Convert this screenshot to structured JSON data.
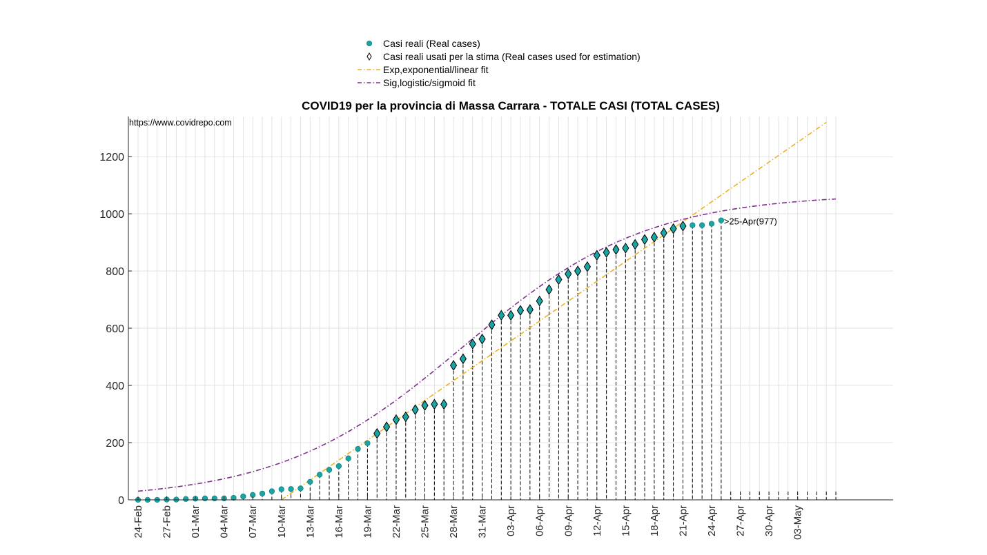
{
  "chart_data": {
    "type": "scatter",
    "title": "COVID19 per la provincia di Massa Carrara - TOTALE CASI (TOTAL CASES)",
    "source": "https://www.covidrepo.com",
    "xlabel": "",
    "ylabel": "",
    "ylim": [
      0,
      1340
    ],
    "yticks": [
      0,
      200,
      400,
      600,
      800,
      1000,
      1200
    ],
    "xlim": [
      "2020-02-24",
      "2020-05-07"
    ],
    "xticks": [
      "24-Feb",
      "27-Feb",
      "01-Mar",
      "04-Mar",
      "07-Mar",
      "10-Mar",
      "13-Mar",
      "16-Mar",
      "19-Mar",
      "22-Mar",
      "25-Mar",
      "28-Mar",
      "31-Mar",
      "03-Apr",
      "06-Apr",
      "09-Apr",
      "12-Apr",
      "15-Apr",
      "18-Apr",
      "21-Apr",
      "24-Apr",
      "27-Apr",
      "30-Apr",
      "03-May"
    ],
    "grid": true,
    "legend_position": "top-center",
    "annotation": ">25-Apr(977)",
    "dates": [
      "2020-02-24",
      "2020-02-25",
      "2020-02-26",
      "2020-02-27",
      "2020-02-28",
      "2020-02-29",
      "2020-03-01",
      "2020-03-02",
      "2020-03-03",
      "2020-03-04",
      "2020-03-05",
      "2020-03-06",
      "2020-03-07",
      "2020-03-08",
      "2020-03-09",
      "2020-03-10",
      "2020-03-11",
      "2020-03-12",
      "2020-03-13",
      "2020-03-14",
      "2020-03-15",
      "2020-03-16",
      "2020-03-17",
      "2020-03-18",
      "2020-03-19",
      "2020-03-20",
      "2020-03-21",
      "2020-03-22",
      "2020-03-23",
      "2020-03-24",
      "2020-03-25",
      "2020-03-26",
      "2020-03-27",
      "2020-03-28",
      "2020-03-29",
      "2020-03-30",
      "2020-03-31",
      "2020-04-01",
      "2020-04-02",
      "2020-04-03",
      "2020-04-04",
      "2020-04-05",
      "2020-04-06",
      "2020-04-07",
      "2020-04-08",
      "2020-04-09",
      "2020-04-10",
      "2020-04-11",
      "2020-04-12",
      "2020-04-13",
      "2020-04-14",
      "2020-04-15",
      "2020-04-16",
      "2020-04-17",
      "2020-04-18",
      "2020-04-19",
      "2020-04-20",
      "2020-04-21",
      "2020-04-22",
      "2020-04-23",
      "2020-04-24",
      "2020-04-25"
    ],
    "series": [
      {
        "name": "Casi reali (Real cases)",
        "marker": "circle",
        "color": "#1aa5a5",
        "values": [
          0,
          0,
          0,
          1,
          1,
          3,
          4,
          5,
          5,
          5,
          7,
          12,
          17,
          22,
          30,
          37,
          38,
          40,
          63,
          88,
          105,
          118,
          145,
          178,
          198,
          232,
          255,
          280,
          290,
          315,
          330,
          334,
          334,
          470,
          493,
          545,
          562,
          612,
          645,
          645,
          662,
          665,
          695,
          735,
          770,
          790,
          800,
          815,
          855,
          865,
          875,
          880,
          893,
          910,
          918,
          933,
          948,
          957,
          960,
          960,
          965,
          977
        ]
      },
      {
        "name": "Casi reali usati per la stima (Real cases used for estimation)",
        "marker": "diamond",
        "color": "#000000",
        "values": [
          null,
          null,
          null,
          null,
          null,
          null,
          null,
          null,
          null,
          null,
          null,
          null,
          null,
          null,
          null,
          null,
          null,
          null,
          null,
          null,
          null,
          null,
          null,
          null,
          null,
          232,
          255,
          280,
          290,
          315,
          330,
          334,
          334,
          470,
          493,
          545,
          562,
          612,
          645,
          645,
          662,
          665,
          695,
          735,
          770,
          790,
          800,
          815,
          855,
          865,
          875,
          880,
          893,
          910,
          918,
          933,
          948,
          957,
          null,
          null,
          null,
          null
        ]
      },
      {
        "name": "Exp,exponential/linear fit",
        "style": "dash-dot",
        "color": "#edb120",
        "formula": {
          "kind": "linear",
          "slope_per_day": 23.15,
          "zero_date": "2020-03-10"
        },
        "range": [
          "2020-03-09",
          "2020-05-06"
        ]
      },
      {
        "name": "Sig,logistic/sigmoid fit",
        "style": "dash-dot",
        "color": "#7e2f8e",
        "formula": {
          "kind": "logistic",
          "K": 1070,
          "rate_per_day": 0.104,
          "midpoint_date": "2020-03-29"
        },
        "range": [
          "2020-02-24",
          "2020-05-07"
        ]
      }
    ]
  },
  "colors": {
    "axis": "#262626",
    "grid": "#dcdcdc",
    "data_fill": "#1aa5a5",
    "marker_edge": "#000000",
    "exp_fit": "#edb120",
    "sig_fit": "#7e2f8e"
  }
}
